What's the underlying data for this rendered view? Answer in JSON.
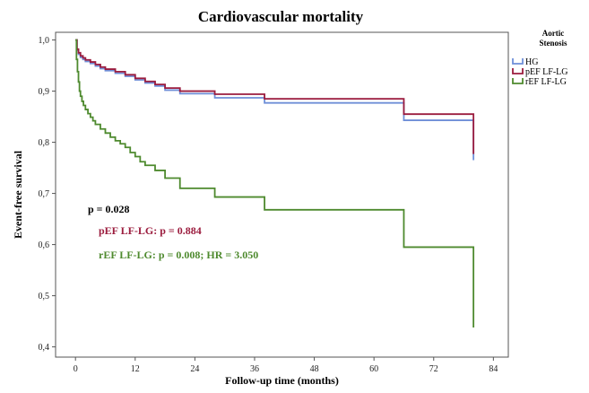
{
  "chart_data": {
    "type": "line",
    "title": "Cardiovascular mortality",
    "xlabel": "Follow-up time (months)",
    "ylabel": "Event-free survival",
    "xlim": [
      -4,
      87
    ],
    "ylim": [
      0.38,
      1.015
    ],
    "x_ticks": [
      0,
      12,
      24,
      36,
      48,
      60,
      72,
      84
    ],
    "x_tick_labels": [
      "0",
      "12",
      "24",
      "36",
      "48",
      "60",
      "72",
      "84"
    ],
    "y_ticks": [
      0.4,
      0.5,
      0.6,
      0.7,
      0.8,
      0.9,
      1.0
    ],
    "y_tick_labels": [
      "0,4",
      "0,5",
      "0,6",
      "0,7",
      "0,8",
      "0,9",
      "1,0"
    ],
    "grid": false,
    "legend": {
      "title": "Aortic Stenosis",
      "title_lines": [
        "Aortic",
        "Stenosis"
      ],
      "position": "top-right"
    },
    "series": [
      {
        "name": "HG",
        "color": "#6f8fd8",
        "x": [
          0,
          0.3,
          0.6,
          1,
          1.5,
          2,
          3,
          4,
          5,
          6,
          8,
          10,
          12,
          14,
          16,
          18,
          21,
          28,
          38,
          66,
          80,
          80
        ],
        "y": [
          1.0,
          0.98,
          0.972,
          0.966,
          0.962,
          0.958,
          0.954,
          0.949,
          0.944,
          0.94,
          0.935,
          0.929,
          0.922,
          0.916,
          0.91,
          0.902,
          0.895,
          0.887,
          0.877,
          0.843,
          0.843,
          0.765
        ]
      },
      {
        "name": "pEF LF-LG",
        "color": "#9b1c3e",
        "x": [
          0,
          0.3,
          0.6,
          1,
          1.5,
          2,
          3,
          4,
          5,
          6,
          8,
          10,
          12,
          14,
          16,
          18,
          21,
          28,
          38,
          66,
          80,
          80
        ],
        "y": [
          1.0,
          0.982,
          0.975,
          0.969,
          0.965,
          0.961,
          0.957,
          0.952,
          0.947,
          0.943,
          0.938,
          0.932,
          0.925,
          0.919,
          0.913,
          0.906,
          0.9,
          0.894,
          0.885,
          0.855,
          0.855,
          0.777
        ]
      },
      {
        "name": "rEF LF-LG",
        "color": "#4e8a2e",
        "x": [
          0,
          0.2,
          0.4,
          0.6,
          0.8,
          1,
          1.3,
          1.6,
          2,
          2.5,
          3,
          3.5,
          4,
          5,
          6,
          7,
          8,
          9,
          10,
          11,
          12,
          13,
          14,
          16,
          18,
          21,
          28,
          38,
          66,
          80,
          80
        ],
        "y": [
          1.0,
          0.962,
          0.938,
          0.918,
          0.9,
          0.89,
          0.88,
          0.872,
          0.864,
          0.856,
          0.849,
          0.842,
          0.835,
          0.826,
          0.818,
          0.81,
          0.803,
          0.797,
          0.79,
          0.78,
          0.772,
          0.762,
          0.755,
          0.745,
          0.73,
          0.71,
          0.693,
          0.668,
          0.595,
          0.595,
          0.438
        ]
      }
    ],
    "annotations": [
      {
        "text": "p = 0.028",
        "color": "#000000"
      },
      {
        "text": "pEF LF-LG: p = 0.884",
        "color": "#9b1c3e"
      },
      {
        "text": "rEF LF-LG: p = 0.008; HR = 3.050",
        "color": "#4e8a2e"
      }
    ]
  }
}
